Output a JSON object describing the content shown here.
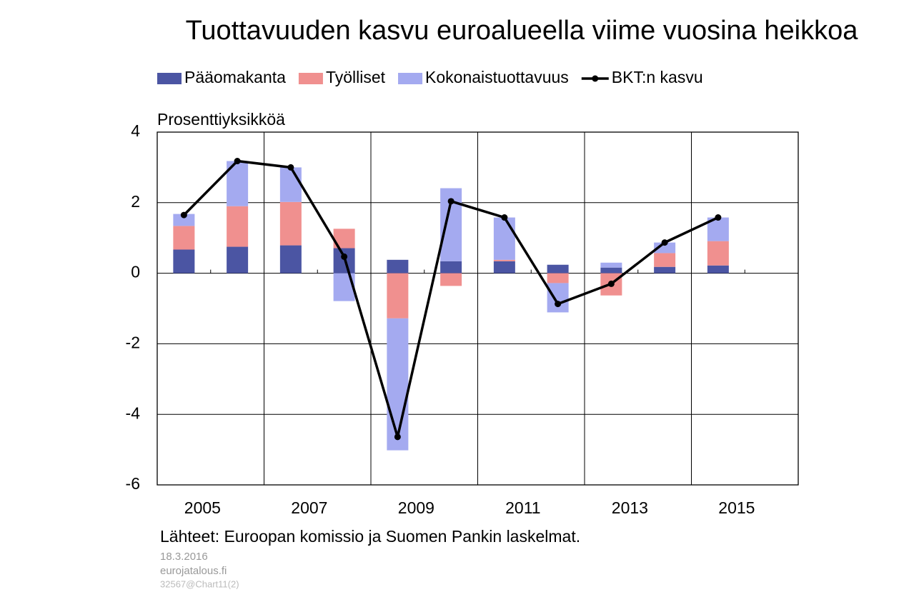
{
  "chart_data": {
    "type": "bar",
    "title": "Tuottavuuden kasvu euroalueella viime vuosina heikkoa",
    "y_label": "Prosenttiyksikköä",
    "categories": [
      "2005",
      null,
      "2007",
      null,
      "2009",
      null,
      "2011",
      null,
      "2013",
      null,
      "2015",
      null
    ],
    "series": [
      {
        "name": "Pääomakanta",
        "type": "bar",
        "color": "#4b55a3",
        "values": [
          0.67,
          0.75,
          0.79,
          0.71,
          0.38,
          0.34,
          0.34,
          0.24,
          0.16,
          0.18,
          0.22,
          null
        ]
      },
      {
        "name": "Työlliset",
        "type": "bar",
        "color": "#f0908f",
        "values": [
          0.67,
          1.15,
          1.23,
          0.55,
          -1.28,
          -0.36,
          0.04,
          -0.28,
          -0.63,
          0.39,
          0.69,
          null
        ]
      },
      {
        "name": "Kokonaistuottavuus",
        "type": "bar",
        "color": "#a4aaf0",
        "values": [
          0.34,
          1.28,
          0.98,
          -0.79,
          -3.74,
          2.07,
          1.2,
          -0.83,
          0.14,
          0.3,
          0.67,
          null
        ]
      },
      {
        "name": "BKT:n kasvu",
        "type": "line",
        "color": "#000000",
        "values": [
          1.65,
          3.18,
          3.0,
          0.47,
          -4.64,
          2.04,
          1.58,
          -0.87,
          -0.3,
          0.87,
          1.58,
          null
        ]
      }
    ],
    "ylim": [
      -6,
      4
    ],
    "yticks": [
      -6,
      -4,
      -2,
      0,
      2,
      4
    ],
    "grid": true,
    "legend": "top",
    "source": "Lähteet: Euroopan komissio ja Suomen Pankin laskelmat.",
    "date": "18.3.2016",
    "site": "eurojatalous.fi",
    "code": "32567@Chart11(2)"
  }
}
